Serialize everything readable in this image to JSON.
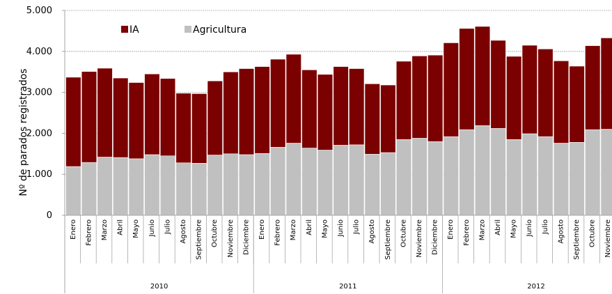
{
  "chart_data": {
    "type": "bar",
    "stacked": true,
    "ylabel": "Nº de parados registrados",
    "ylim": [
      0,
      5000
    ],
    "yticks": [
      "0",
      "1.000",
      "2.000",
      "3.000",
      "4.000",
      "5.000"
    ],
    "grid": true,
    "legend_position": "top-left",
    "years": [
      "2010",
      "2011",
      "2012"
    ],
    "categories": [
      "Enero",
      "Febrero",
      "Marzo",
      "Abril",
      "Mayo",
      "Junio",
      "Julio",
      "Agosto",
      "Septiembre",
      "Octubre",
      "Noviembre",
      "Diciembre",
      "Enero",
      "Febrero",
      "Marzo",
      "Abril",
      "Mayo",
      "Junio",
      "Julio",
      "Agosto",
      "Septiembre",
      "Octubre",
      "Noviembre",
      "Diciembre",
      "Enero",
      "Febrero",
      "Marzo",
      "Abril",
      "Mayo",
      "Junio",
      "Julio",
      "Agosto",
      "Septiembre",
      "Octubre",
      "Noviembre"
    ],
    "series": [
      {
        "name": "Agricultura",
        "color": "#c0c0c0",
        "values": [
          1190,
          1290,
          1420,
          1410,
          1380,
          1480,
          1450,
          1280,
          1270,
          1470,
          1500,
          1480,
          1510,
          1660,
          1760,
          1640,
          1590,
          1710,
          1720,
          1490,
          1530,
          1850,
          1880,
          1800,
          1920,
          2090,
          2190,
          2120,
          1850,
          1990,
          1920,
          1760,
          1780,
          2090,
          2100
        ]
      },
      {
        "name": "IA",
        "color": "#7b0000",
        "values": [
          2180,
          2220,
          2170,
          1940,
          1860,
          1970,
          1890,
          1700,
          1700,
          1810,
          2000,
          2100,
          2120,
          2150,
          2170,
          1910,
          1850,
          1920,
          1860,
          1720,
          1650,
          1910,
          2010,
          2110,
          2290,
          2470,
          2420,
          2150,
          2030,
          2160,
          2140,
          2010,
          1860,
          2050,
          2230
        ]
      }
    ]
  }
}
